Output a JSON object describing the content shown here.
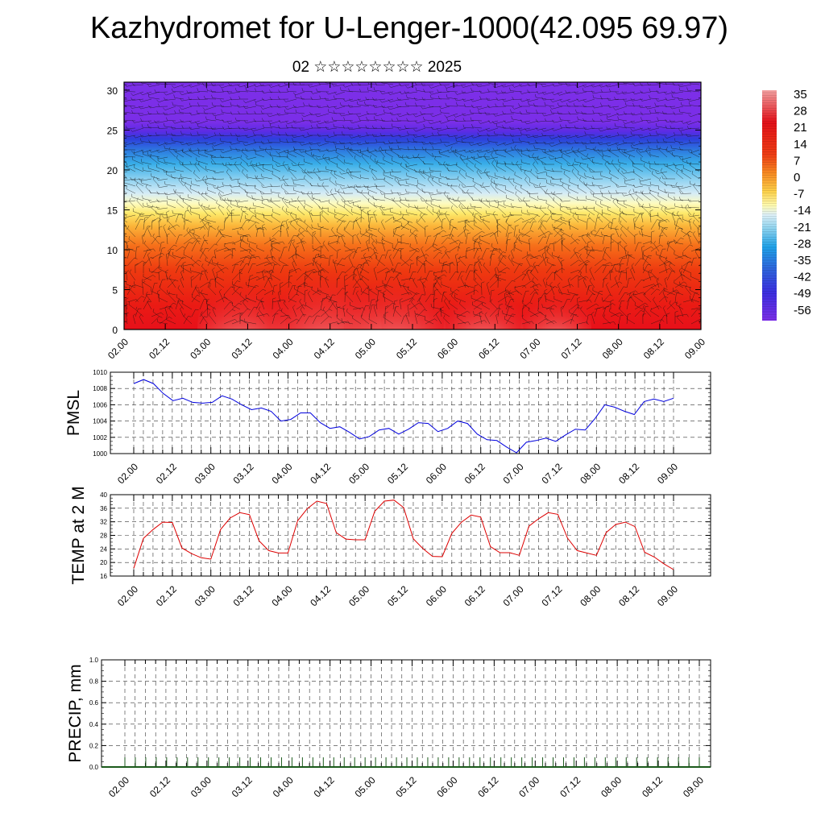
{
  "page": {
    "title": "Kazhydromet for U-Lenger-1000(42.095 69.97)",
    "subtitle": "02 ☆☆☆☆☆☆☆☆ 2025"
  },
  "time_ticks": [
    "02.00",
    "02.12",
    "03.00",
    "03.12",
    "04.00",
    "04.12",
    "05.00",
    "05.12",
    "06.00",
    "06.12",
    "07.00",
    "07.12",
    "08.00",
    "08.12",
    "09.00"
  ],
  "precip_time_ticks": [
    "02.00",
    "02.12",
    "03.00",
    "03.12",
    "04.00",
    "04.12",
    "05.00",
    "05.12",
    "06.00",
    "06.12",
    "07.00",
    "07.12",
    "08.00",
    "08.12",
    "09.00"
  ],
  "colorbar": {
    "labels": [
      "35",
      "28",
      "21",
      "14",
      "7",
      "0",
      "-7",
      "-14",
      "-21",
      "-28",
      "-35",
      "-42",
      "-49",
      "-56"
    ]
  },
  "chart_data": [
    {
      "type": "heatmap",
      "title": "Kazhydromet for U-Lenger-1000(42.095 69.97)",
      "subtitle": "02 ☆☆☆☆☆☆☆☆ 2025",
      "x_ticks": [
        "02.00",
        "02.12",
        "03.00",
        "03.12",
        "04.00",
        "04.12",
        "05.00",
        "05.12",
        "06.00",
        "06.12",
        "07.00",
        "07.12",
        "08.00",
        "08.12",
        "09.00"
      ],
      "y_ticks": [
        0,
        5,
        10,
        15,
        20,
        25,
        30
      ],
      "ylim": [
        0,
        31
      ],
      "overlay": "wind barbs",
      "colorscale_labels": [
        "35",
        "28",
        "21",
        "14",
        "7",
        "0",
        "-7",
        "-14",
        "-21",
        "-28",
        "-35",
        "-42",
        "-49",
        "-56"
      ]
    },
    {
      "type": "line",
      "ylabel": "PMSL",
      "ylim": [
        1000,
        1010
      ],
      "y_ticks": [
        1000,
        1002,
        1004,
        1006,
        1008,
        1010
      ],
      "x_ticks": [
        "02.00",
        "02.12",
        "03.00",
        "03.12",
        "04.00",
        "04.12",
        "05.00",
        "05.12",
        "06.00",
        "06.12",
        "07.00",
        "07.12",
        "08.00",
        "08.12",
        "09.00"
      ],
      "color": "#0000dd",
      "values": [
        1008.6,
        1009.1,
        1008.6,
        1007.4,
        1006.5,
        1006.8,
        1006.3,
        1006.2,
        1006.3,
        1007.1,
        1006.7,
        1006.0,
        1005.4,
        1005.6,
        1005.2,
        1004.0,
        1004.2,
        1005.0,
        1005.0,
        1003.8,
        1003.1,
        1003.3,
        1002.6,
        1001.8,
        1002.1,
        1002.9,
        1003.1,
        1002.4,
        1003.0,
        1003.8,
        1003.7,
        1002.7,
        1003.1,
        1004.0,
        1003.7,
        1002.4,
        1001.7,
        1001.6,
        1000.8,
        1000.1,
        1001.4,
        1001.6,
        1001.9,
        1001.5,
        1002.3,
        1003.0,
        1002.9,
        1004.3,
        1006.0,
        1005.7,
        1005.2,
        1004.8,
        1006.4,
        1006.7,
        1006.4,
        1006.8
      ]
    },
    {
      "type": "line",
      "ylabel": "TEMP at 2 M",
      "ylim": [
        16,
        40
      ],
      "y_ticks": [
        16,
        20,
        24,
        28,
        32,
        36,
        40
      ],
      "x_ticks": [
        "02.00",
        "02.12",
        "03.00",
        "03.12",
        "04.00",
        "04.12",
        "05.00",
        "05.12",
        "06.00",
        "06.12",
        "07.00",
        "07.12",
        "08.00",
        "08.12",
        "09.00"
      ],
      "color": "#dd0000",
      "values": [
        18.3,
        27.1,
        29.7,
        31.9,
        31.8,
        24.3,
        22.6,
        21.4,
        21.0,
        29.7,
        33.1,
        34.7,
        34.1,
        26.4,
        23.5,
        22.8,
        22.8,
        32.3,
        35.9,
        38.1,
        37.4,
        28.8,
        26.9,
        26.7,
        26.7,
        35.1,
        38.1,
        38.4,
        36.2,
        27.0,
        24.1,
        21.8,
        21.7,
        28.6,
        31.9,
        34.0,
        33.4,
        24.7,
        22.9,
        22.9,
        22.1,
        30.7,
        32.9,
        34.7,
        34.2,
        27.2,
        23.5,
        22.8,
        22.1,
        28.8,
        31.2,
        31.9,
        30.6,
        23.0,
        21.6,
        19.6,
        17.9
      ]
    },
    {
      "type": "bar",
      "ylabel": "PRECIP, mm",
      "ylim": [
        0.0,
        1.0
      ],
      "y_ticks": [
        "0.0",
        "0.2",
        "0.4",
        "0.6",
        "0.8",
        "1.0"
      ],
      "x_ticks": [
        "02.00",
        "02.12",
        "03.00",
        "03.12",
        "04.00",
        "04.12",
        "05.00",
        "05.12",
        "06.00",
        "06.12",
        "07.00",
        "07.12",
        "08.00",
        "08.12",
        "09.00"
      ],
      "values": [
        0,
        0,
        0,
        0,
        0,
        0,
        0,
        0,
        0,
        0,
        0,
        0,
        0,
        0,
        0,
        0,
        0,
        0,
        0,
        0,
        0,
        0,
        0,
        0,
        0,
        0,
        0,
        0,
        0,
        0,
        0,
        0,
        0,
        0,
        0,
        0,
        0,
        0,
        0,
        0,
        0,
        0,
        0,
        0,
        0,
        0,
        0,
        0,
        0,
        0,
        0,
        0,
        0,
        0,
        0,
        0
      ]
    }
  ]
}
